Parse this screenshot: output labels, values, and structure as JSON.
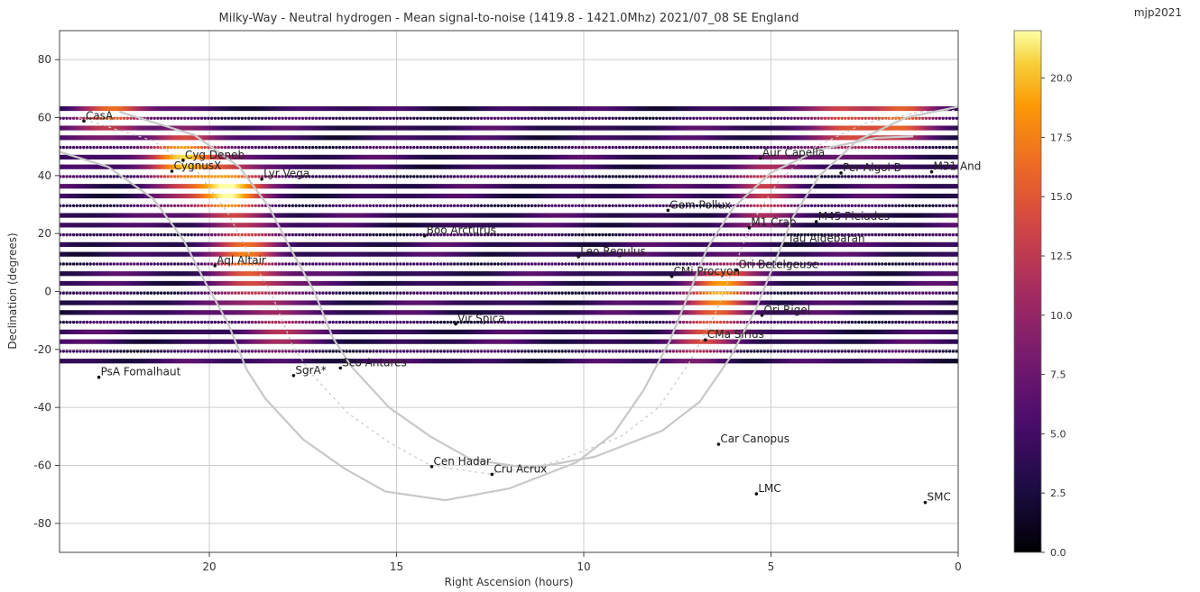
{
  "chart_data": {
    "type": "scatter",
    "title": "Milky-Way - Neutral hydrogen - Mean signal-to-noise (1419.8 - 1421.0Mhz)  2021/07_08  SE England",
    "corner_label": "mjp2021",
    "xlabel": "Right Ascension (hours)",
    "ylabel": "Declination (degrees)",
    "xlim": [
      24,
      0
    ],
    "ylim": [
      -90,
      90
    ],
    "x_ticks": [
      20,
      15,
      10,
      5,
      0
    ],
    "y_ticks": [
      80,
      60,
      40,
      20,
      0,
      -20,
      -40,
      -60,
      -80
    ],
    "grid": true,
    "colormap": "inferno",
    "colorbar": {
      "range": [
        0,
        22
      ],
      "ticks": [
        0.0,
        2.5,
        5.0,
        7.5,
        10.0,
        12.5,
        15.0,
        17.5,
        20.0
      ],
      "tick_labels": [
        "0.0",
        "2.5",
        "5.0",
        "7.5",
        "10.0",
        "12.5",
        "15.0",
        "17.5",
        "20.0"
      ]
    },
    "survey_strips": {
      "dec_min": -24,
      "dec_max": 66,
      "dec_step": 3.35,
      "ra_min": 0,
      "ra_max": 24
    },
    "galactic_plane_peaks": [
      {
        "ra": 19.5,
        "dec": 35,
        "snr": 21
      },
      {
        "ra": 20.7,
        "dec": 45,
        "snr": 18
      },
      {
        "ra": 18.9,
        "dec": 10,
        "snr": 17
      },
      {
        "ra": 18.3,
        "dec": -10,
        "snr": 12
      },
      {
        "ra": 6.3,
        "dec": 0,
        "snr": 17
      },
      {
        "ra": 6.9,
        "dec": -15,
        "snr": 11
      },
      {
        "ra": 5.2,
        "dec": 35,
        "snr": 13
      },
      {
        "ra": 3.0,
        "dec": 58,
        "snr": 16
      },
      {
        "ra": 1.5,
        "dec": 62,
        "snr": 15
      },
      {
        "ra": 22.5,
        "dec": 62,
        "snr": 15
      }
    ],
    "galactic_plane_path": [
      [
        23.5,
        60
      ],
      [
        21.5,
        52
      ],
      [
        20.3,
        41
      ],
      [
        19.5,
        27
      ],
      [
        18.9,
        12
      ],
      [
        18.3,
        -2
      ],
      [
        17.8,
        -18
      ],
      [
        17.3,
        -28
      ],
      [
        16.3,
        -42
      ],
      [
        15.2,
        -52
      ],
      [
        14.1,
        -60
      ],
      [
        12.5,
        -63
      ],
      [
        10.8,
        -59
      ],
      [
        9.0,
        -50
      ],
      [
        8.0,
        -40
      ],
      [
        7.2,
        -25
      ],
      [
        6.5,
        -8
      ],
      [
        6.0,
        8
      ],
      [
        5.5,
        24
      ],
      [
        4.8,
        38
      ],
      [
        3.8,
        50
      ],
      [
        2.5,
        58
      ],
      [
        1.0,
        62
      ],
      [
        0,
        62.5
      ]
    ],
    "objects": [
      {
        "name": "CasA",
        "ra": 23.35,
        "dec": 58.8
      },
      {
        "name": "Cyg Deneb",
        "ra": 20.7,
        "dec": 45.3
      },
      {
        "name": "CygnusX",
        "ra": 21.0,
        "dec": 41.5
      },
      {
        "name": "Lyr Vega",
        "ra": 18.6,
        "dec": 38.8
      },
      {
        "name": "Aql Altair",
        "ra": 19.85,
        "dec": 8.9
      },
      {
        "name": "PsA Fomalhaut",
        "ra": 22.95,
        "dec": -29.6
      },
      {
        "name": "SgrA*",
        "ra": 17.75,
        "dec": -29.0
      },
      {
        "name": "Sco Antares",
        "ra": 16.5,
        "dec": -26.4
      },
      {
        "name": "Boo Arcturus",
        "ra": 14.25,
        "dec": 19.2
      },
      {
        "name": "Vir Spica",
        "ra": 13.42,
        "dec": -11.2
      },
      {
        "name": "Leo Regulus",
        "ra": 10.14,
        "dec": 12.0
      },
      {
        "name": "Cen Hadar",
        "ra": 14.06,
        "dec": -60.4
      },
      {
        "name": "Cru Acrux",
        "ra": 12.45,
        "dec": -63.1
      },
      {
        "name": "Gem Pollux",
        "ra": 7.75,
        "dec": 28.0
      },
      {
        "name": "CMi Procyon",
        "ra": 7.65,
        "dec": 5.2
      },
      {
        "name": "CMa Sirius",
        "ra": 6.75,
        "dec": -16.7
      },
      {
        "name": "Ori Betelgeuse",
        "ra": 5.92,
        "dec": 7.4
      },
      {
        "name": "Ori Rigel",
        "ra": 5.24,
        "dec": -8.2
      },
      {
        "name": "M1 Crab",
        "ra": 5.58,
        "dec": 22.0
      },
      {
        "name": "Tau Aldebaran",
        "ra": 4.6,
        "dec": 16.5
      },
      {
        "name": "Aur Capella",
        "ra": 5.28,
        "dec": 46.0
      },
      {
        "name": "Per Algol B",
        "ra": 3.13,
        "dec": 40.9
      },
      {
        "name": "M45 Pleiades",
        "ra": 3.79,
        "dec": 24.1
      },
      {
        "name": "M31 And",
        "ra": 0.71,
        "dec": 41.3
      },
      {
        "name": "Car Canopus",
        "ra": 6.4,
        "dec": -52.7
      },
      {
        "name": "LMC",
        "ra": 5.39,
        "dec": -69.8
      },
      {
        "name": "SMC",
        "ra": 0.88,
        "dec": -72.8
      }
    ]
  },
  "colors": {
    "grid": "#cccccc",
    "outline": "#c8c8c8",
    "text": "#333333",
    "marker": "#111111"
  }
}
